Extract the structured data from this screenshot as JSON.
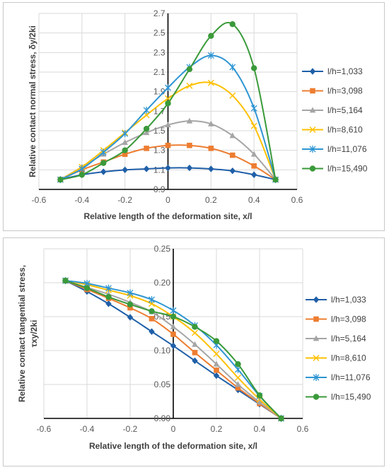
{
  "chart_data": [
    {
      "type": "line",
      "xlabel": "Relative length of the deformation site, x/l",
      "ylabel": "Relative contact normal stress, δy/2ki",
      "xlim": [
        -0.6,
        0.6
      ],
      "ylim": [
        0.9,
        2.7
      ],
      "xticks": [
        "-0.6",
        "-0.4",
        "-0.2",
        "0",
        "0.2",
        "0.4",
        "0.6"
      ],
      "yticks": [
        "0.9",
        "1.1",
        "1.3",
        "1.5",
        "1.7",
        "1.9",
        "2.1",
        "2.3",
        "2.5",
        "2.7"
      ],
      "x": [
        -0.5,
        -0.4,
        -0.3,
        -0.2,
        -0.1,
        0,
        0.1,
        0.2,
        0.3,
        0.4,
        0.5
      ],
      "legend_position": "right",
      "series": [
        {
          "name": "l/h=1,033",
          "color": "#1f5fa8",
          "marker": "diamond",
          "values": [
            1.0,
            1.05,
            1.08,
            1.1,
            1.11,
            1.12,
            1.12,
            1.11,
            1.09,
            1.05,
            1.0
          ]
        },
        {
          "name": "l/h=3,098",
          "color": "#ed7d31",
          "marker": "square",
          "values": [
            1.0,
            1.1,
            1.18,
            1.26,
            1.32,
            1.35,
            1.35,
            1.32,
            1.25,
            1.14,
            1.0
          ]
        },
        {
          "name": "l/h=5,164",
          "color": "#a5a5a5",
          "marker": "triangle",
          "values": [
            1.0,
            1.13,
            1.26,
            1.38,
            1.48,
            1.56,
            1.6,
            1.57,
            1.45,
            1.26,
            1.0
          ]
        },
        {
          "name": "l/h=8,610",
          "color": "#ffc000",
          "marker": "x",
          "values": [
            1.0,
            1.13,
            1.3,
            1.48,
            1.66,
            1.83,
            1.96,
            1.99,
            1.86,
            1.55,
            1.0
          ]
        },
        {
          "name": "l/h=11,076",
          "color": "#2e95d3",
          "marker": "star",
          "values": [
            1.0,
            1.11,
            1.28,
            1.47,
            1.71,
            1.94,
            2.15,
            2.27,
            2.15,
            1.73,
            1.0
          ]
        },
        {
          "name": "l/h=15,490",
          "color": "#3a9a3a",
          "marker": "circle",
          "values": [
            1.0,
            1.05,
            1.17,
            1.3,
            1.52,
            1.78,
            2.13,
            2.47,
            2.59,
            2.14,
            1.0
          ]
        }
      ]
    },
    {
      "type": "line",
      "xlabel": "Relative length of the deformation site, x/l",
      "ylabel_line1": "Relative contact tangential stress,",
      "ylabel_line2": "τxy/2ki",
      "xlim": [
        -0.6,
        0.6
      ],
      "ylim": [
        0.0,
        0.25
      ],
      "xticks": [
        "-0.6",
        "-0.4",
        "-0.2",
        "0",
        "0.2",
        "0.4",
        "0.6"
      ],
      "yticks": [
        "0.00",
        "0.05",
        "0.10",
        "0.15",
        "0.20",
        "0.25"
      ],
      "x": [
        -0.5,
        -0.4,
        -0.3,
        -0.2,
        -0.1,
        0,
        0.1,
        0.2,
        0.3,
        0.4,
        0.5
      ],
      "legend_position": "right",
      "series": [
        {
          "name": "l/h=1,033",
          "color": "#1f5fa8",
          "marker": "diamond",
          "values": [
            0.203,
            0.187,
            0.169,
            0.149,
            0.128,
            0.107,
            0.085,
            0.063,
            0.042,
            0.021,
            0.0
          ]
        },
        {
          "name": "l/h=3,098",
          "color": "#ed7d31",
          "marker": "square",
          "values": [
            0.203,
            0.19,
            0.177,
            0.163,
            0.147,
            0.124,
            0.097,
            0.071,
            0.045,
            0.022,
            0.0
          ]
        },
        {
          "name": "l/h=5,164",
          "color": "#a5a5a5",
          "marker": "triangle",
          "values": [
            0.203,
            0.193,
            0.183,
            0.171,
            0.157,
            0.135,
            0.109,
            0.08,
            0.05,
            0.024,
            0.0
          ]
        },
        {
          "name": "l/h=8,610",
          "color": "#ffc000",
          "marker": "x",
          "values": [
            0.203,
            0.197,
            0.189,
            0.181,
            0.169,
            0.15,
            0.126,
            0.095,
            0.06,
            0.028,
            0.0
          ]
        },
        {
          "name": "l/h=11,076",
          "color": "#2e95d3",
          "marker": "star",
          "values": [
            0.203,
            0.199,
            0.192,
            0.185,
            0.175,
            0.159,
            0.137,
            0.108,
            0.072,
            0.033,
            0.0
          ]
        },
        {
          "name": "l/h=15,490",
          "color": "#3a9a3a",
          "marker": "circle",
          "values": [
            0.203,
            0.192,
            0.179,
            0.168,
            0.158,
            0.15,
            0.135,
            0.114,
            0.08,
            0.034,
            0.0
          ]
        }
      ]
    }
  ]
}
